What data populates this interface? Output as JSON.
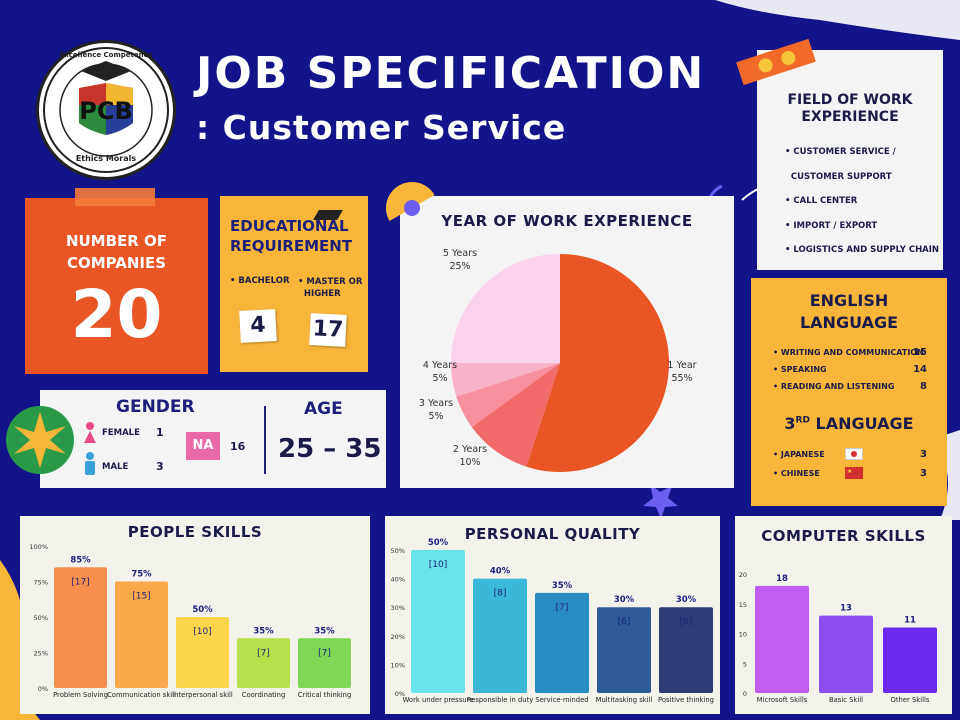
{
  "header": {
    "title": "JOB SPECIFICATION",
    "subtitle": ": Customer Service"
  },
  "logo": {
    "ring_top": "Excellence Competence",
    "ring_bottom": "Ethics Morals",
    "monogram": "PCB"
  },
  "companies": {
    "label": "NUMBER OF\nCOMPANIES",
    "value": "20"
  },
  "education": {
    "title": "EDUCATIONAL\nREQUIREMENT",
    "bachelor_label": "• BACHELOR",
    "master_label": "• MASTER OR\n  HIGHER",
    "bachelor_value": "4",
    "master_value": "17"
  },
  "gender": {
    "title": "GENDER",
    "female_label": "FEMALE",
    "female_value": "1",
    "male_label": "MALE",
    "male_value": "3",
    "na_label": "NA",
    "na_value": "16"
  },
  "age": {
    "title": "AGE",
    "value": "25 – 35"
  },
  "field": {
    "title": "FIELD OF WORK\nEXPERIENCE",
    "items": [
      "• CUSTOMER SERVICE /",
      "  CUSTOMER SUPPORT",
      "• CALL CENTER",
      "• IMPORT / EXPORT",
      "• LOGISTICS AND SUPPLY CHAIN"
    ]
  },
  "english": {
    "title": "ENGLISH\nLANGUAGE",
    "items": [
      {
        "label": "• WRITING AND COMMUNICATION",
        "value": "15"
      },
      {
        "label": "• SPEAKING",
        "value": "14"
      },
      {
        "label": "• READING AND LISTENING",
        "value": "8"
      }
    ]
  },
  "third": {
    "title_main": "3",
    "title_sup": "RD",
    "title_rest": " LANGUAGE",
    "items": [
      {
        "label": "• JAPANESE",
        "value": "3"
      },
      {
        "label": "• CHINESE",
        "value": "3"
      }
    ]
  },
  "colors": {
    "bg": "#14148a",
    "orange": "#ea5526",
    "yellow": "#f7b53a",
    "card": "#f4f4f4"
  },
  "chart_data": [
    {
      "type": "pie",
      "title": "YEAR OF WORK EXPERIENCE",
      "slices": [
        {
          "name": "1 Year",
          "label": "55%",
          "value": 55,
          "color": "#ea5526"
        },
        {
          "name": "2 Years",
          "label": "10%",
          "value": 10,
          "color": "#f26b6b"
        },
        {
          "name": "3 Years",
          "label": "5%",
          "value": 5,
          "color": "#f7909e"
        },
        {
          "name": "4 Years",
          "label": "5%",
          "value": 5,
          "color": "#f9b3c9"
        },
        {
          "name": "5 Years",
          "label": "25%",
          "value": 25,
          "color": "#fbd3ef"
        }
      ]
    },
    {
      "type": "bar",
      "title": "PEOPLE SKILLS",
      "categories": [
        "Problem Solving",
        "Communication skill",
        "Interpersonal skill",
        "Coordinating",
        "Critical thinking"
      ],
      "values": [
        85,
        75,
        50,
        35,
        35
      ],
      "pct_labels": [
        "85%",
        "75%",
        "50%",
        "35%",
        "35%"
      ],
      "counts": [
        "[17]",
        "[15]",
        "[10]",
        "[7]",
        "[7]"
      ],
      "colors": [
        "#f7904e",
        "#f9a94c",
        "#fbd64a",
        "#b8e04d",
        "#7fd756"
      ],
      "ylim": [
        0,
        100
      ],
      "yticks": [
        "0%",
        "25%",
        "50%",
        "75%",
        "100%"
      ],
      "ytick_values": [
        0,
        25,
        50,
        75,
        100
      ]
    },
    {
      "type": "bar",
      "title": "PERSONAL QUALITY",
      "categories": [
        "Work under pressure",
        "Responsible in duty",
        "Service-minded",
        "Multitasking skill",
        "Positive thinking"
      ],
      "values": [
        50,
        40,
        35,
        30,
        30
      ],
      "pct_labels": [
        "50%",
        "40%",
        "35%",
        "30%",
        "30%"
      ],
      "counts": [
        "[10]",
        "[8]",
        "[7]",
        "[6]",
        "[6]"
      ],
      "colors": [
        "#6be3e8",
        "#3bb7d8",
        "#2b8cc4",
        "#2e5c98",
        "#2d3c74"
      ],
      "ylim": [
        0,
        50
      ],
      "yticks": [
        "0%",
        "10%",
        "20%",
        "30%",
        "40%",
        "50%"
      ],
      "ytick_values": [
        0,
        10,
        20,
        30,
        40,
        50
      ]
    },
    {
      "type": "bar",
      "title": "COMPUTER SKILLS",
      "categories": [
        "Microsoft Skills",
        "Basic Skill",
        "Other Skills"
      ],
      "values": [
        18,
        13,
        11
      ],
      "pct_labels": [
        "18",
        "13",
        "11"
      ],
      "counts": [
        "",
        "",
        ""
      ],
      "colors": [
        "#c15ef0",
        "#8b4ff0",
        "#6a2af0"
      ],
      "ylim": [
        0,
        20
      ],
      "yticks": [
        "0",
        "5",
        "10",
        "15",
        "20"
      ],
      "ytick_values": [
        0,
        5,
        10,
        15,
        20
      ]
    }
  ]
}
